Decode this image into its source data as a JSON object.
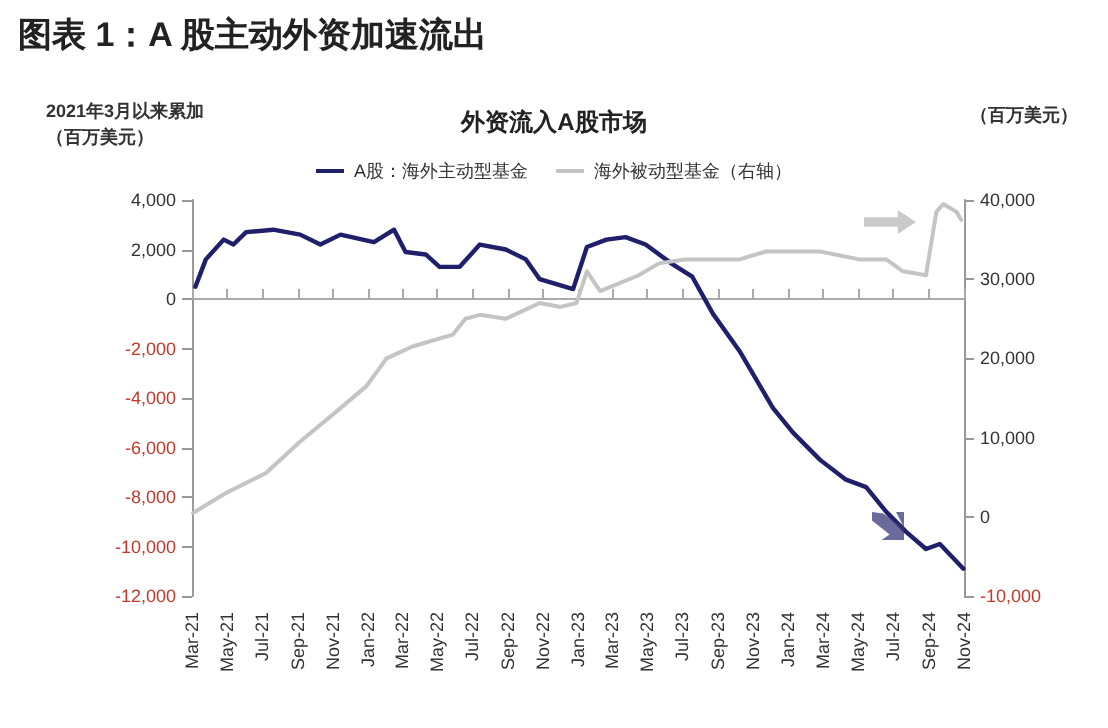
{
  "chart_data": {
    "type": "line",
    "title": "图表 1：A 股主动外资加速流出",
    "subtitle": "外资流入A股市场",
    "ylabel": "2021年3月以来累加（百万美元）",
    "y2label": "（百万美元）",
    "xlim": [
      "2021-03-01",
      "2024-11-01"
    ],
    "xticks": [
      {
        "value": "2021-03-01",
        "label": "Mar-21"
      },
      {
        "value": "2021-05-01",
        "label": "May-21"
      },
      {
        "value": "2021-07-01",
        "label": "Jul-21"
      },
      {
        "value": "2021-09-01",
        "label": "Sep-21"
      },
      {
        "value": "2021-11-01",
        "label": "Nov-21"
      },
      {
        "value": "2022-01-01",
        "label": "Jan-22"
      },
      {
        "value": "2022-03-01",
        "label": "Mar-22"
      },
      {
        "value": "2022-05-01",
        "label": "May-22"
      },
      {
        "value": "2022-07-01",
        "label": "Jul-22"
      },
      {
        "value": "2022-09-01",
        "label": "Sep-22"
      },
      {
        "value": "2022-11-01",
        "label": "Nov-22"
      },
      {
        "value": "2023-01-01",
        "label": "Jan-23"
      },
      {
        "value": "2023-03-01",
        "label": "Mar-23"
      },
      {
        "value": "2023-05-01",
        "label": "May-23"
      },
      {
        "value": "2023-07-01",
        "label": "Jul-23"
      },
      {
        "value": "2023-09-01",
        "label": "Sep-23"
      },
      {
        "value": "2023-11-01",
        "label": "Nov-23"
      },
      {
        "value": "2024-01-01",
        "label": "Jan-24"
      },
      {
        "value": "2024-03-01",
        "label": "Mar-24"
      },
      {
        "value": "2024-05-01",
        "label": "May-24"
      },
      {
        "value": "2024-07-01",
        "label": "Jul-24"
      },
      {
        "value": "2024-09-01",
        "label": "Sep-24"
      },
      {
        "value": "2024-11-01",
        "label": "Nov-24"
      }
    ],
    "ylim": [
      -12000,
      4000
    ],
    "yticks": [
      {
        "value": -12000,
        "label": "-12,000"
      },
      {
        "value": -10000,
        "label": "-10,000"
      },
      {
        "value": -8000,
        "label": "-8,000"
      },
      {
        "value": -6000,
        "label": "-6,000"
      },
      {
        "value": -4000,
        "label": "-4,000"
      },
      {
        "value": -2000,
        "label": "-2,000"
      },
      0,
      {
        "value": 2000,
        "label": "2,000"
      },
      {
        "value": 4000,
        "label": "4,000"
      }
    ],
    "y2lim": [
      -10000,
      40000
    ],
    "y2ticks": [
      {
        "value": -10000,
        "label": "-10,000"
      },
      0,
      {
        "value": 10000,
        "label": "10,000"
      },
      {
        "value": 20000,
        "label": "20,000"
      },
      {
        "value": 30000,
        "label": "30,000"
      },
      {
        "value": 40000,
        "label": "40,000"
      }
    ],
    "legend": "top",
    "marker": "none",
    "line_style": "solid",
    "series": [
      {
        "name": "A股：海外主动型基金",
        "color": "#1f1f6b",
        "x": [
          "2021-03-07",
          "2021-03-25",
          "2021-04-25",
          "2021-05-12",
          "2021-06-03",
          "2021-07-20",
          "2021-09-05",
          "2021-10-10",
          "2021-11-14",
          "2022-01-11",
          "2022-02-15",
          "2022-03-07",
          "2022-04-11",
          "2022-05-05",
          "2022-06-09",
          "2022-07-14",
          "2022-08-28",
          "2022-10-02",
          "2022-10-26",
          "2022-12-23",
          "2023-01-16",
          "2023-02-19",
          "2023-03-24",
          "2023-04-28",
          "2023-06-14",
          "2023-07-18",
          "2023-08-23",
          "2023-10-08",
          "2023-12-05",
          "2024-01-09",
          "2024-02-25",
          "2024-04-10",
          "2024-05-15",
          "2024-06-19",
          "2024-07-23",
          "2024-08-27",
          "2024-09-20",
          "2024-10-31"
        ],
        "values": [
          500,
          1600,
          2400,
          2200,
          2700,
          2800,
          2600,
          2200,
          2600,
          2300,
          2800,
          1900,
          1800,
          1300,
          1300,
          2200,
          2000,
          1600,
          800,
          400,
          2100,
          2400,
          2500,
          2200,
          1400,
          900,
          -600,
          -2100,
          -4400,
          -5400,
          -6500,
          -7300,
          -7600,
          -8600,
          -9400,
          -10100,
          -9900,
          -10900
        ]
      },
      {
        "name": "海外被动型基金（右轴）",
        "color": "#c4c4c4",
        "axis": "y2",
        "x": [
          "2021-03-03",
          "2021-04-29",
          "2021-07-07",
          "2021-09-05",
          "2021-11-02",
          "2021-12-29",
          "2022-02-02",
          "2022-03-19",
          "2022-05-28",
          "2022-06-19",
          "2022-07-14",
          "2022-08-28",
          "2022-10-26",
          "2022-12-01",
          "2022-12-29",
          "2023-01-16",
          "2023-02-08",
          "2023-04-16",
          "2023-05-21",
          "2023-07-05",
          "2023-10-08",
          "2023-11-23",
          "2024-02-25",
          "2024-05-03",
          "2024-06-19",
          "2024-07-18",
          "2024-08-27",
          "2024-09-14",
          "2024-09-26",
          "2024-10-19",
          "2024-10-27"
        ],
        "values": [
          500,
          3000,
          5500,
          9500,
          13000,
          16500,
          20000,
          21500,
          23000,
          25000,
          25500,
          25000,
          27000,
          26500,
          27000,
          31000,
          28500,
          30500,
          32000,
          32500,
          32500,
          33500,
          33500,
          32500,
          32500,
          31000,
          30500,
          38500,
          39500,
          38500,
          37500
        ]
      }
    ]
  }
}
